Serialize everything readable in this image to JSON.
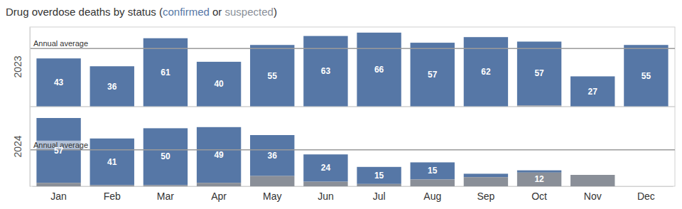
{
  "chart_data": [
    {
      "type": "bar",
      "title": "Drug overdose deaths by status (confirmed or suspected)",
      "ylabel": "2023",
      "categories": [
        "Jan",
        "Feb",
        "Mar",
        "Apr",
        "May",
        "Jun",
        "Jul",
        "Aug",
        "Sep",
        "Oct",
        "Nov",
        "Dec"
      ],
      "stacked": true,
      "data_labels": true,
      "tick_labels": false,
      "ylim": [
        0,
        71
      ],
      "series": [
        {
          "name": "confirmed",
          "color": "#5677a6",
          "values": [
            43,
            36,
            61,
            40,
            55,
            63,
            66,
            57,
            62,
            57,
            27,
            55
          ],
          "value_labels": [
            "43",
            "36",
            "61",
            "40",
            "55",
            "63",
            "66",
            "57",
            "62",
            "57",
            "27",
            "55"
          ]
        },
        {
          "name": "suspected",
          "color": "#8a8f98",
          "values": [
            0,
            0,
            0,
            0,
            0,
            0,
            0,
            0,
            0,
            1,
            0,
            0
          ],
          "value_labels": [
            null,
            null,
            null,
            null,
            null,
            null,
            null,
            null,
            null,
            null,
            null,
            null
          ]
        }
      ],
      "annual_average": {
        "label": "Annual average",
        "value": 51.8
      }
    },
    {
      "type": "bar",
      "ylabel": "2024",
      "categories": [
        "Jan",
        "Feb",
        "Mar",
        "Apr",
        "May",
        "Jun",
        "Jul",
        "Aug",
        "Sep",
        "Oct",
        "Nov",
        "Dec"
      ],
      "stacked": true,
      "data_labels": true,
      "tick_labels": "x",
      "ylim": [
        0,
        70
      ],
      "series": [
        {
          "name": "confirmed",
          "color": "#5677a6",
          "values": [
            57,
            41,
            50,
            49,
            36,
            24,
            15,
            15,
            3,
            2,
            0,
            null
          ],
          "value_labels": [
            "57",
            "41",
            "50",
            "49",
            "36",
            "24",
            "15",
            "15",
            null,
            null,
            null,
            null
          ]
        },
        {
          "name": "suspected",
          "color": "#8a8f98",
          "values": [
            3,
            1,
            1,
            3,
            9,
            4,
            2,
            6,
            8,
            12,
            10,
            null
          ],
          "value_labels": [
            null,
            null,
            null,
            null,
            null,
            null,
            null,
            null,
            null,
            "12",
            null,
            null
          ]
        }
      ],
      "annual_average": {
        "label": "Annual average",
        "value": 32
      }
    }
  ]
}
